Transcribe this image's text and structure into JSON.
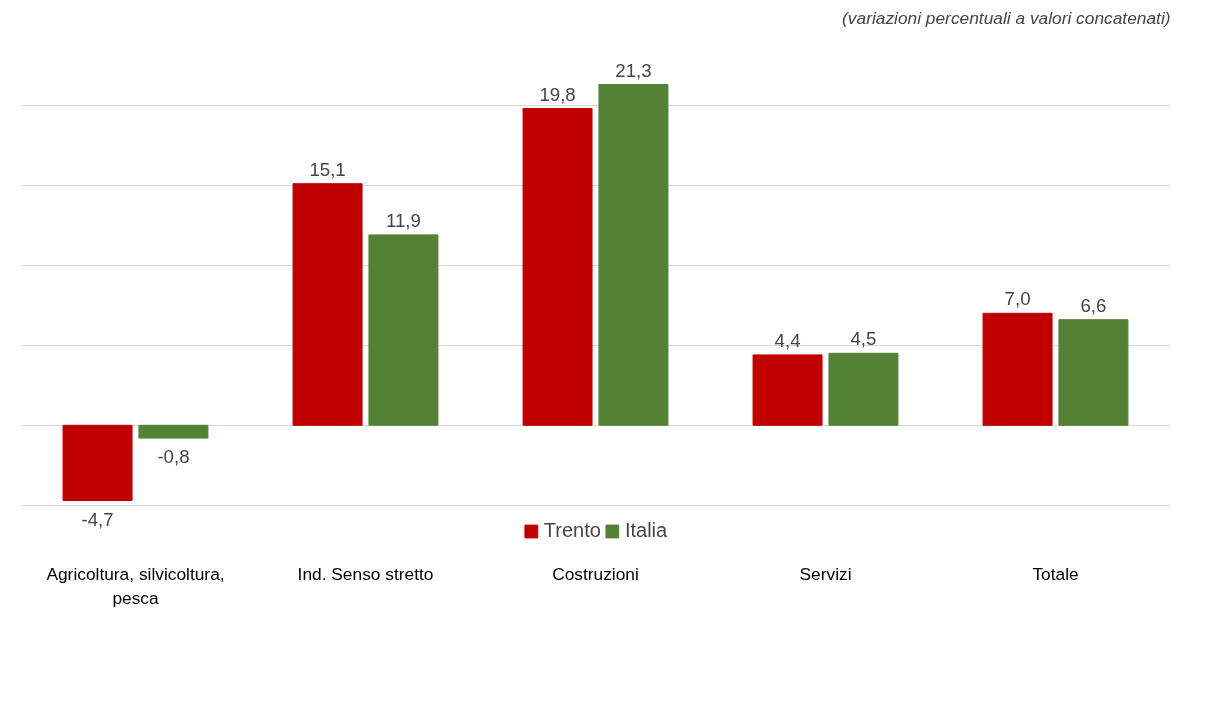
{
  "chart_data": {
    "type": "bar",
    "annotations": [
      "(variazioni percentuali a valori concatenati)"
    ],
    "categories": [
      "Agricoltura, silvicoltura, pesca",
      "Ind. Senso stretto",
      "Costruzioni",
      "Servizi",
      "Totale"
    ],
    "series": [
      {
        "name": "Trento",
        "color": "#c00000",
        "values": [
          -4.7,
          15.1,
          19.8,
          4.4,
          7.0
        ],
        "value_labels": [
          "-4,7",
          "15,1",
          "19,8",
          "4,4",
          "7,0"
        ]
      },
      {
        "name": "Italia",
        "color": "#548235",
        "values": [
          -0.8,
          11.9,
          21.3,
          4.5,
          6.6
        ],
        "value_labels": [
          "-0,8",
          "11,9",
          "21,3",
          "4,5",
          "6,6"
        ]
      }
    ],
    "tick_labels": "x",
    "grid": "y",
    "legend": "bottom"
  }
}
